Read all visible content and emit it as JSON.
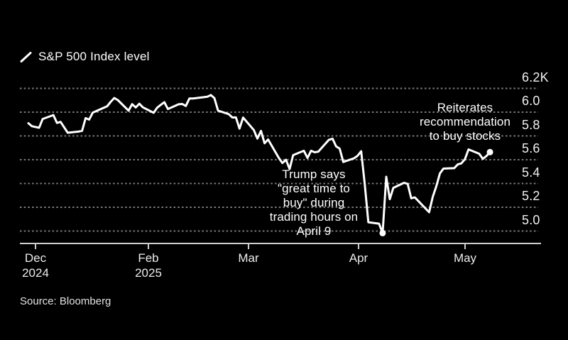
{
  "legend": {
    "label": "S&P 500 Index level"
  },
  "source": "Source: Bloomberg",
  "annotations": {
    "trump": "Trump says\n\"great time to\nbuy\" during\ntrading hours on\nApril 9",
    "reiterates": "Reiterates\nrecommendation\nto buy stocks"
  },
  "colors": {
    "background": "#000000",
    "line": "#ffffff",
    "gridline": "#7b7b7b",
    "axis": "#cfcfcf",
    "text": "#ffffff"
  },
  "chart_data": {
    "type": "line",
    "title": "S&P 500 Index level",
    "xlabel": "",
    "ylabel": "",
    "grid": "horizontal-dashed",
    "legend_position": "top-left",
    "ylim": [
      4900,
      6260
    ],
    "yticks": [
      {
        "value": 6200,
        "label": "6.2K"
      },
      {
        "value": 6000,
        "label": "6.0"
      },
      {
        "value": 5800,
        "label": "5.8"
      },
      {
        "value": 5600,
        "label": "5.6"
      },
      {
        "value": 5400,
        "label": "5.4"
      },
      {
        "value": 5200,
        "label": "5.2"
      },
      {
        "value": 5000,
        "label": "5.0"
      }
    ],
    "xticks": [
      "Dec\n2024",
      "Feb\n2025",
      "Mar",
      "Apr",
      "May"
    ],
    "series": [
      {
        "name": "S&P 500 Index level",
        "points": [
          [
            "2024-12-30",
            5906.94
          ],
          [
            "2024-12-31",
            5881.63
          ],
          [
            "2025-01-02",
            5868.55
          ],
          [
            "2025-01-03",
            5942.47
          ],
          [
            "2025-01-06",
            5975.38
          ],
          [
            "2025-01-07",
            5909.03
          ],
          [
            "2025-01-08",
            5918.25
          ],
          [
            "2025-01-10",
            5827.04
          ],
          [
            "2025-01-13",
            5836.22
          ],
          [
            "2025-01-14",
            5842.91
          ],
          [
            "2025-01-15",
            5949.91
          ],
          [
            "2025-01-16",
            5937.34
          ],
          [
            "2025-01-17",
            5996.66
          ],
          [
            "2025-01-21",
            6049.24
          ],
          [
            "2025-01-22",
            6086.37
          ],
          [
            "2025-01-23",
            6118.71
          ],
          [
            "2025-01-24",
            6101.24
          ],
          [
            "2025-01-27",
            6012.28
          ],
          [
            "2025-01-28",
            6067.7
          ],
          [
            "2025-01-29",
            6039.31
          ],
          [
            "2025-01-30",
            6071.17
          ],
          [
            "2025-01-31",
            6040.53
          ],
          [
            "2025-02-03",
            5994.57
          ],
          [
            "2025-02-04",
            6037.88
          ],
          [
            "2025-02-05",
            6061.48
          ],
          [
            "2025-02-06",
            6083.57
          ],
          [
            "2025-02-07",
            6025.99
          ],
          [
            "2025-02-10",
            6066.44
          ],
          [
            "2025-02-11",
            6068.5
          ],
          [
            "2025-02-12",
            6051.97
          ],
          [
            "2025-02-13",
            6115.07
          ],
          [
            "2025-02-14",
            6114.63
          ],
          [
            "2025-02-18",
            6129.58
          ],
          [
            "2025-02-19",
            6144.15
          ],
          [
            "2025-02-20",
            6117.52
          ],
          [
            "2025-02-21",
            6013.13
          ],
          [
            "2025-02-24",
            5983.25
          ],
          [
            "2025-02-25",
            5955.25
          ],
          [
            "2025-02-26",
            5956.06
          ],
          [
            "2025-02-27",
            5861.57
          ],
          [
            "2025-02-28",
            5954.5
          ],
          [
            "2025-03-03",
            5849.72
          ],
          [
            "2025-03-04",
            5778.15
          ],
          [
            "2025-03-05",
            5842.63
          ],
          [
            "2025-03-06",
            5738.52
          ],
          [
            "2025-03-07",
            5770.2
          ],
          [
            "2025-03-10",
            5614.56
          ],
          [
            "2025-03-11",
            5572.07
          ],
          [
            "2025-03-12",
            5599.3
          ],
          [
            "2025-03-13",
            5521.52
          ],
          [
            "2025-03-14",
            5638.94
          ],
          [
            "2025-03-17",
            5675.12
          ],
          [
            "2025-03-18",
            5614.66
          ],
          [
            "2025-03-19",
            5675.29
          ],
          [
            "2025-03-20",
            5662.89
          ],
          [
            "2025-03-21",
            5667.56
          ],
          [
            "2025-03-24",
            5767.57
          ],
          [
            "2025-03-25",
            5776.65
          ],
          [
            "2025-03-26",
            5712.2
          ],
          [
            "2025-03-27",
            5693.31
          ],
          [
            "2025-03-28",
            5580.94
          ],
          [
            "2025-03-31",
            5611.85
          ],
          [
            "2025-04-01",
            5633.07
          ],
          [
            "2025-04-02",
            5670.97
          ],
          [
            "2025-04-03",
            5396.52
          ],
          [
            "2025-04-04",
            5074.08
          ],
          [
            "2025-04-07",
            5062.25
          ],
          [
            "2025-04-08",
            4982.77
          ],
          [
            "2025-04-09",
            5456.9
          ],
          [
            "2025-04-10",
            5268.05
          ],
          [
            "2025-04-11",
            5363.36
          ],
          [
            "2025-04-14",
            5405.97
          ],
          [
            "2025-04-15",
            5396.63
          ],
          [
            "2025-04-16",
            5275.7
          ],
          [
            "2025-04-17",
            5282.7
          ],
          [
            "2025-04-21",
            5158.2
          ],
          [
            "2025-04-22",
            5287.76
          ],
          [
            "2025-04-23",
            5375.86
          ],
          [
            "2025-04-24",
            5484.77
          ],
          [
            "2025-04-25",
            5525.21
          ],
          [
            "2025-04-28",
            5528.75
          ],
          [
            "2025-04-29",
            5560.83
          ],
          [
            "2025-04-30",
            5569.06
          ],
          [
            "2025-05-01",
            5604.14
          ],
          [
            "2025-05-02",
            5686.67
          ],
          [
            "2025-05-05",
            5650.38
          ],
          [
            "2025-05-06",
            5606.91
          ],
          [
            "2025-05-07",
            5631.28
          ],
          [
            "2025-05-08",
            5663.94
          ]
        ]
      }
    ],
    "markers": [
      {
        "date": "2025-04-08",
        "value": 4982.77,
        "note": "April 8 low marked with dot"
      },
      {
        "date": "2025-05-08",
        "value": 5663.94,
        "note": "last point marked with dot"
      }
    ]
  }
}
